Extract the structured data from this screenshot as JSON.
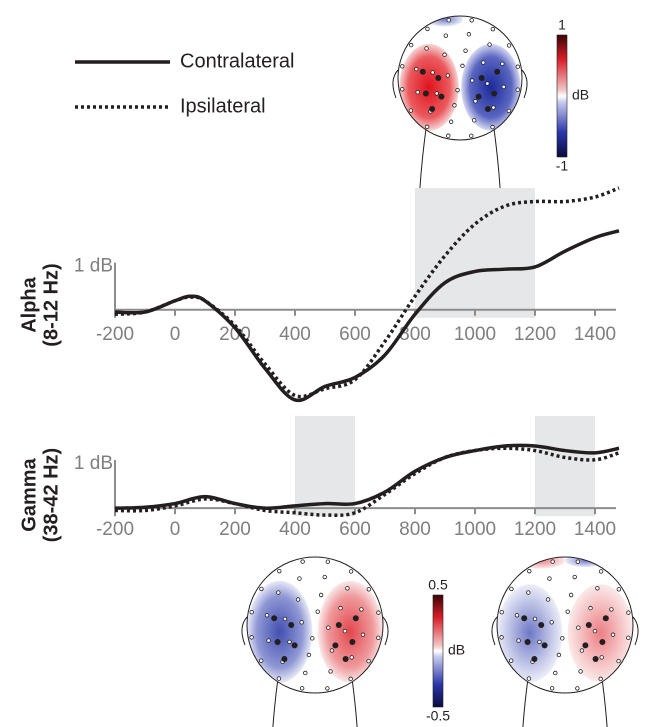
{
  "chart_data": [
    {
      "type": "line",
      "ylabel": [
        "Alpha",
        "(8-12 Hz)"
      ],
      "x": [
        -200,
        -100,
        0,
        50,
        100,
        200,
        300,
        400,
        500,
        600,
        700,
        800,
        900,
        1000,
        1100,
        1200,
        1300,
        1400,
        1480
      ],
      "series": [
        {
          "name": "Contralateral",
          "style": "solid",
          "color": "#231f20",
          "values": [
            -0.05,
            -0.05,
            0.2,
            0.3,
            0.2,
            -0.4,
            -1.3,
            -2.0,
            -1.7,
            -1.5,
            -1.0,
            -0.1,
            0.6,
            0.85,
            0.9,
            0.95,
            1.3,
            1.6,
            1.75
          ]
        },
        {
          "name": "Ipsilateral",
          "style": "dotted",
          "color": "#231f20",
          "values": [
            -0.1,
            -0.05,
            0.2,
            0.28,
            0.2,
            -0.35,
            -1.2,
            -1.9,
            -1.75,
            -1.55,
            -0.7,
            0.3,
            1.2,
            1.9,
            2.3,
            2.4,
            2.4,
            2.5,
            2.7
          ]
        }
      ],
      "shaded": [
        [
          800,
          1200
        ]
      ],
      "xlim": [
        -200,
        1470
      ],
      "xticks": [
        -200,
        0,
        200,
        400,
        600,
        800,
        1000,
        1200,
        1400
      ],
      "ylim": [
        -2.2,
        2.7
      ],
      "yticks": [
        {
          "value": 1,
          "label": "1 dB"
        }
      ]
    },
    {
      "type": "line",
      "ylabel": [
        "Gamma",
        "(38-42 Hz)"
      ],
      "x": [
        -200,
        -100,
        0,
        100,
        200,
        300,
        400,
        500,
        600,
        700,
        800,
        900,
        1000,
        1100,
        1200,
        1300,
        1400,
        1480
      ],
      "series": [
        {
          "style": "solid",
          "color": "#231f20",
          "values": [
            0,
            0.02,
            0.1,
            0.25,
            0.1,
            0.0,
            0.05,
            0.1,
            0.1,
            0.35,
            0.8,
            1.1,
            1.25,
            1.35,
            1.35,
            1.25,
            1.2,
            1.3
          ]
        },
        {
          "style": "dotted",
          "color": "#231f20",
          "values": [
            -0.05,
            -0.05,
            0.05,
            0.2,
            0.1,
            -0.05,
            -0.1,
            -0.15,
            -0.1,
            0.3,
            0.75,
            1.1,
            1.25,
            1.3,
            1.25,
            1.1,
            1.05,
            1.2
          ]
        }
      ],
      "shaded": [
        [
          400,
          600
        ],
        [
          1200,
          1400
        ]
      ],
      "xlim": [
        -200,
        1470
      ],
      "xticks": [
        -200,
        0,
        200,
        400,
        600,
        800,
        1000,
        1200,
        1400
      ],
      "ylim": [
        -0.3,
        2.0
      ],
      "yticks": [
        {
          "value": 1,
          "label": "1 dB"
        }
      ]
    }
  ],
  "colorbars": [
    {
      "label": "dB",
      "max": 1,
      "min": -1
    },
    {
      "label": "dB",
      "max": 0.5,
      "min": -0.5
    }
  ]
}
